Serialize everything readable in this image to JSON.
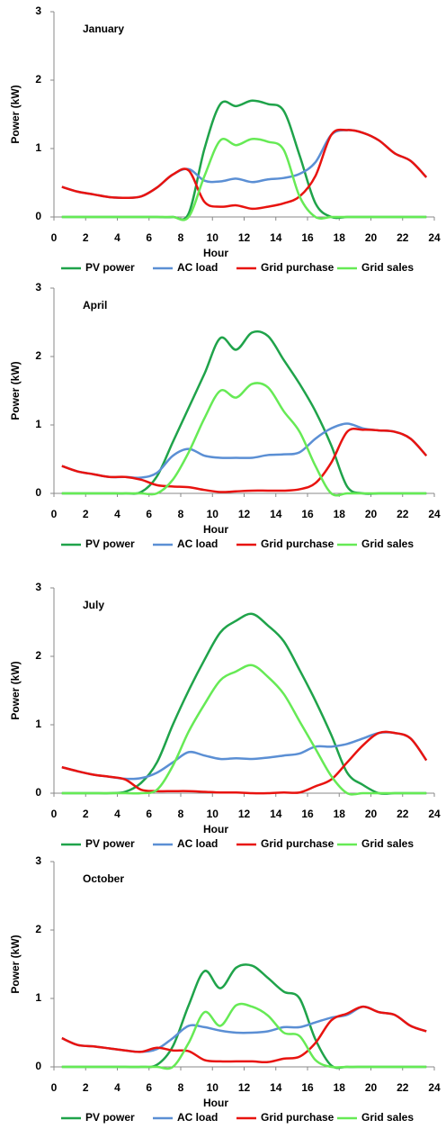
{
  "chart_data": [
    {
      "type": "line",
      "title": "January",
      "xlabel": "Hour",
      "ylabel": "Power (kW)",
      "x": [
        0.5,
        1.5,
        2.5,
        3.5,
        4.5,
        5.5,
        6.5,
        7.5,
        8.5,
        9.5,
        10.5,
        11.5,
        12.5,
        13.5,
        14.5,
        15.5,
        16.5,
        17.5,
        18.5,
        19.5,
        20.5,
        21.5,
        22.5,
        23.5
      ],
      "xlim": [
        0,
        24
      ],
      "xticks": [
        0,
        2,
        4,
        6,
        8,
        10,
        12,
        14,
        16,
        18,
        20,
        22,
        24
      ],
      "ylim": [
        0,
        3
      ],
      "yticks": [
        0,
        1,
        2,
        3
      ],
      "legend": "bottom",
      "series": [
        {
          "name": "PV power",
          "color": "#1fa34a",
          "values": [
            0,
            0,
            0,
            0,
            0,
            0,
            0,
            0,
            0.05,
            1.0,
            1.65,
            1.62,
            1.7,
            1.65,
            1.55,
            0.9,
            0.2,
            0,
            0,
            0,
            0,
            0,
            0,
            0
          ]
        },
        {
          "name": "AC load",
          "color": "#5b8fd4",
          "values": [
            0.44,
            0.37,
            0.33,
            0.29,
            0.28,
            0.3,
            0.43,
            0.62,
            0.7,
            0.53,
            0.52,
            0.56,
            0.51,
            0.55,
            0.57,
            0.63,
            0.8,
            1.2,
            1.27,
            1.23,
            1.12,
            0.93,
            0.82,
            0.58
          ]
        },
        {
          "name": "Grid purchase",
          "color": "#e8130f",
          "values": [
            0.44,
            0.37,
            0.33,
            0.29,
            0.28,
            0.3,
            0.43,
            0.62,
            0.68,
            0.22,
            0.15,
            0.17,
            0.12,
            0.15,
            0.2,
            0.3,
            0.6,
            1.2,
            1.27,
            1.23,
            1.12,
            0.93,
            0.82,
            0.58
          ]
        },
        {
          "name": "Grid sales",
          "color": "#66ea55",
          "values": [
            0,
            0,
            0,
            0,
            0,
            0,
            0,
            0,
            0,
            0.6,
            1.12,
            1.05,
            1.14,
            1.1,
            0.98,
            0.3,
            0,
            0,
            0,
            0,
            0,
            0,
            0,
            0
          ]
        }
      ]
    },
    {
      "type": "line",
      "title": "April",
      "xlabel": "Hour",
      "ylabel": "Power (kW)",
      "x": [
        0.5,
        1.5,
        2.5,
        3.5,
        4.5,
        5.5,
        6.5,
        7.5,
        8.5,
        9.5,
        10.5,
        11.5,
        12.5,
        13.5,
        14.5,
        15.5,
        16.5,
        17.5,
        18.5,
        19.5,
        20.5,
        21.5,
        22.5,
        23.5
      ],
      "xlim": [
        0,
        24
      ],
      "xticks": [
        0,
        2,
        4,
        6,
        8,
        10,
        12,
        14,
        16,
        18,
        20,
        22,
        24
      ],
      "ylim": [
        0,
        3
      ],
      "yticks": [
        0,
        1,
        2,
        3
      ],
      "legend": "bottom",
      "series": [
        {
          "name": "PV power",
          "color": "#1fa34a",
          "values": [
            0,
            0,
            0,
            0,
            0,
            0.02,
            0.25,
            0.75,
            1.25,
            1.75,
            2.27,
            2.1,
            2.35,
            2.3,
            1.95,
            1.6,
            1.2,
            0.7,
            0.1,
            0,
            0,
            0,
            0,
            0
          ]
        },
        {
          "name": "AC load",
          "color": "#5b8fd4",
          "values": [
            0.4,
            0.32,
            0.28,
            0.24,
            0.24,
            0.23,
            0.3,
            0.55,
            0.65,
            0.55,
            0.52,
            0.52,
            0.52,
            0.56,
            0.57,
            0.6,
            0.8,
            0.95,
            1.02,
            0.95,
            0.92,
            0.9,
            0.8,
            0.55
          ]
        },
        {
          "name": "Grid purchase",
          "color": "#e8130f",
          "values": [
            0.4,
            0.32,
            0.28,
            0.24,
            0.24,
            0.2,
            0.12,
            0.1,
            0.09,
            0.05,
            0.02,
            0.03,
            0.04,
            0.04,
            0.04,
            0.06,
            0.15,
            0.45,
            0.9,
            0.93,
            0.92,
            0.9,
            0.8,
            0.55
          ]
        },
        {
          "name": "Grid sales",
          "color": "#66ea55",
          "values": [
            0,
            0,
            0,
            0,
            0,
            0,
            0,
            0.2,
            0.6,
            1.1,
            1.5,
            1.4,
            1.6,
            1.55,
            1.2,
            0.9,
            0.4,
            0,
            0,
            0,
            0,
            0,
            0,
            0
          ]
        }
      ]
    },
    {
      "type": "line",
      "title": "July",
      "xlabel": "Hour",
      "ylabel": "Power (kW)",
      "x": [
        0.5,
        1.5,
        2.5,
        3.5,
        4.5,
        5.5,
        6.5,
        7.5,
        8.5,
        9.5,
        10.5,
        11.5,
        12.5,
        13.5,
        14.5,
        15.5,
        16.5,
        17.5,
        18.5,
        19.5,
        20.5,
        21.5,
        22.5,
        23.5
      ],
      "xlim": [
        0,
        24
      ],
      "xticks": [
        0,
        2,
        4,
        6,
        8,
        10,
        12,
        14,
        16,
        18,
        20,
        22,
        24
      ],
      "ylim": [
        0,
        3
      ],
      "yticks": [
        0,
        1,
        2,
        3
      ],
      "legend": "bottom",
      "series": [
        {
          "name": "PV power",
          "color": "#1fa34a",
          "values": [
            0,
            0,
            0,
            0,
            0.02,
            0.15,
            0.45,
            1.0,
            1.5,
            1.95,
            2.35,
            2.52,
            2.62,
            2.45,
            2.22,
            1.8,
            1.35,
            0.85,
            0.3,
            0.12,
            0,
            0,
            0,
            0
          ]
        },
        {
          "name": "AC load",
          "color": "#5b8fd4",
          "values": [
            0.38,
            0.32,
            0.27,
            0.24,
            0.21,
            0.22,
            0.3,
            0.45,
            0.6,
            0.55,
            0.5,
            0.51,
            0.5,
            0.52,
            0.55,
            0.58,
            0.68,
            0.68,
            0.72,
            0.8,
            0.88,
            0.88,
            0.8,
            0.48
          ]
        },
        {
          "name": "Grid purchase",
          "color": "#e8130f",
          "values": [
            0.38,
            0.32,
            0.27,
            0.24,
            0.2,
            0.05,
            0.03,
            0.03,
            0.03,
            0.02,
            0.01,
            0.01,
            0,
            0,
            0.01,
            0.01,
            0.1,
            0.2,
            0.45,
            0.7,
            0.88,
            0.88,
            0.8,
            0.48
          ]
        },
        {
          "name": "Grid sales",
          "color": "#66ea55",
          "values": [
            0,
            0,
            0,
            0,
            0,
            0,
            0.05,
            0.4,
            0.9,
            1.3,
            1.65,
            1.78,
            1.87,
            1.7,
            1.45,
            1.05,
            0.65,
            0.25,
            0,
            0,
            0,
            0,
            0,
            0
          ]
        }
      ]
    },
    {
      "type": "line",
      "title": "October",
      "xlabel": "Hour",
      "ylabel": "Power (kW)",
      "x": [
        0.5,
        1.5,
        2.5,
        3.5,
        4.5,
        5.5,
        6.5,
        7.5,
        8.5,
        9.5,
        10.5,
        11.5,
        12.5,
        13.5,
        14.5,
        15.5,
        16.5,
        17.5,
        18.5,
        19.5,
        20.5,
        21.5,
        22.5,
        23.5
      ],
      "xlim": [
        0,
        24
      ],
      "xticks": [
        0,
        2,
        4,
        6,
        8,
        10,
        12,
        14,
        16,
        18,
        20,
        22,
        24
      ],
      "ylim": [
        0,
        3
      ],
      "yticks": [
        0,
        1,
        2,
        3
      ],
      "legend": "bottom",
      "series": [
        {
          "name": "PV power",
          "color": "#1fa34a",
          "values": [
            0,
            0,
            0,
            0,
            0,
            0,
            0.03,
            0.3,
            0.9,
            1.4,
            1.15,
            1.45,
            1.48,
            1.3,
            1.1,
            1.0,
            0.4,
            0.02,
            0,
            0,
            0,
            0,
            0,
            0
          ]
        },
        {
          "name": "AC load",
          "color": "#5b8fd4",
          "values": [
            0.42,
            0.32,
            0.3,
            0.27,
            0.24,
            0.22,
            0.26,
            0.42,
            0.6,
            0.58,
            0.53,
            0.5,
            0.5,
            0.52,
            0.58,
            0.58,
            0.65,
            0.72,
            0.76,
            0.88,
            0.8,
            0.76,
            0.6,
            0.52
          ]
        },
        {
          "name": "Grid purchase",
          "color": "#e8130f",
          "values": [
            0.42,
            0.32,
            0.3,
            0.27,
            0.24,
            0.22,
            0.28,
            0.24,
            0.23,
            0.1,
            0.08,
            0.08,
            0.08,
            0.07,
            0.12,
            0.15,
            0.35,
            0.68,
            0.78,
            0.88,
            0.8,
            0.76,
            0.6,
            0.52
          ]
        },
        {
          "name": "Grid sales",
          "color": "#66ea55",
          "values": [
            0,
            0,
            0,
            0,
            0,
            0,
            0,
            0,
            0.35,
            0.8,
            0.6,
            0.9,
            0.88,
            0.75,
            0.5,
            0.45,
            0.1,
            0,
            0,
            0,
            0,
            0,
            0,
            0
          ]
        }
      ]
    }
  ]
}
